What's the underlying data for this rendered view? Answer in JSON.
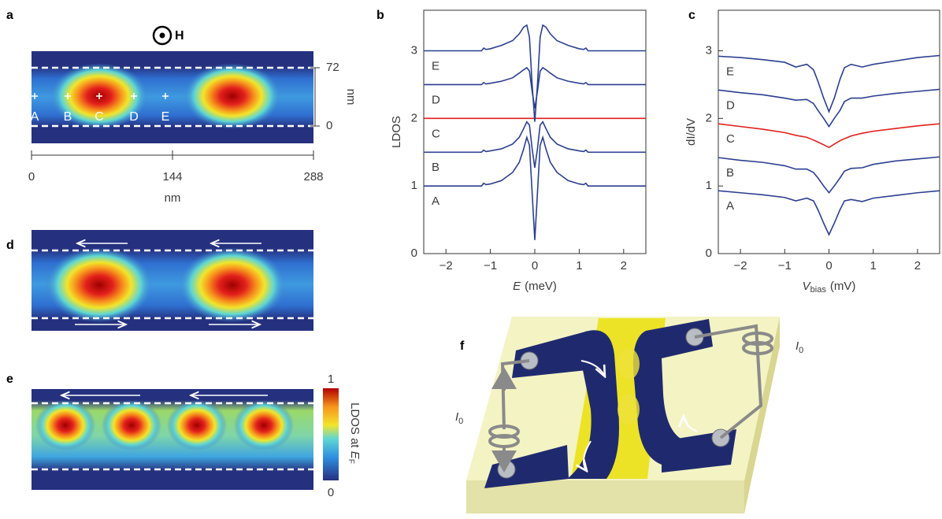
{
  "panel_labels": [
    "a",
    "b",
    "c",
    "d",
    "e",
    "f"
  ],
  "panel_a": {
    "field_label": "H",
    "site_labels": [
      "A",
      "B",
      "C",
      "D",
      "E"
    ],
    "y_scale": {
      "ticks": [
        72,
        0
      ],
      "unit": "nm"
    },
    "x_scale": {
      "ticks": [
        0,
        144,
        288
      ],
      "unit": "nm"
    }
  },
  "panel_e": {
    "colorbar": {
      "ticks": [
        1,
        0
      ],
      "label": [
        "LDOS at ",
        "E",
        "F"
      ]
    }
  },
  "panel_f": {
    "current_labels": [
      [
        "I",
        "0"
      ],
      [
        "I",
        "0"
      ]
    ]
  },
  "chart_data": [
    {
      "type": "line",
      "ylabel": "LDOS",
      "xlabel": {
        "symbol": "E",
        "unit": "(meV)"
      },
      "xlim": [
        -2.5,
        2.5
      ],
      "ylim": [
        0,
        3.6
      ],
      "xticks": [
        {
          "value": -2,
          "label": "−2"
        },
        {
          "value": -1,
          "label": "−1"
        },
        0,
        1,
        2
      ],
      "yticks": [
        0,
        1,
        2,
        3
      ],
      "x": [
        -2.5,
        -2,
        -1.5,
        -1.2,
        -1.15,
        -1.1,
        -1,
        -0.75,
        -0.5,
        -0.35,
        -0.25,
        -0.18,
        -0.12,
        -0.06,
        0,
        0.06,
        0.12,
        0.18,
        0.25,
        0.35,
        0.5,
        0.75,
        1,
        1.1,
        1.15,
        1.2,
        1.5,
        2,
        2.5
      ],
      "series": [
        {
          "name": "A",
          "color": "#2b3f8f",
          "values": [
            1,
            1,
            1,
            1,
            1.04,
            1.02,
            1.03,
            1.08,
            1.2,
            1.35,
            1.55,
            1.72,
            1.6,
            0.9,
            0.2,
            0.9,
            1.6,
            1.72,
            1.55,
            1.35,
            1.2,
            1.08,
            1.03,
            1.02,
            1.04,
            1,
            1,
            1,
            1
          ]
        },
        {
          "name": "B",
          "color": "#2b3f8f",
          "values": [
            1.5,
            1.5,
            1.5,
            1.5,
            1.53,
            1.51,
            1.52,
            1.55,
            1.62,
            1.72,
            1.85,
            1.95,
            1.9,
            1.55,
            1.27,
            1.55,
            1.9,
            1.95,
            1.85,
            1.72,
            1.62,
            1.55,
            1.52,
            1.51,
            1.53,
            1.5,
            1.5,
            1.5,
            1.5
          ]
        },
        {
          "name": "C",
          "color": "#e0201b",
          "values": [
            2,
            2,
            2,
            2,
            2,
            2,
            2,
            2,
            2,
            2,
            2,
            2,
            2,
            2,
            2,
            2,
            2,
            2,
            2,
            2,
            2,
            2,
            2,
            2,
            2,
            2,
            2,
            2,
            2
          ]
        },
        {
          "name": "D",
          "color": "#2b3f8f",
          "values": [
            2.5,
            2.5,
            2.5,
            2.5,
            2.53,
            2.51,
            2.52,
            2.55,
            2.6,
            2.67,
            2.72,
            2.75,
            2.7,
            2.4,
            2.15,
            2.4,
            2.7,
            2.75,
            2.72,
            2.67,
            2.6,
            2.55,
            2.52,
            2.51,
            2.53,
            2.5,
            2.5,
            2.5,
            2.5
          ]
        },
        {
          "name": "E",
          "color": "#2b3f8f",
          "values": [
            3,
            3,
            3,
            3,
            3.04,
            3.02,
            3.03,
            3.08,
            3.15,
            3.25,
            3.35,
            3.38,
            3.2,
            2.5,
            1.95,
            2.5,
            3.2,
            3.38,
            3.35,
            3.25,
            3.15,
            3.08,
            3.03,
            3.02,
            3.04,
            3,
            3,
            3,
            3
          ]
        }
      ]
    },
    {
      "type": "line",
      "ylabel": "dI/dV",
      "xlabel": {
        "symbol": "V",
        "subscript": "bias",
        "unit": "(mV)"
      },
      "xlim": [
        -2.5,
        2.5
      ],
      "ylim": [
        0,
        3.6
      ],
      "xticks": [
        {
          "value": -2,
          "label": "−2"
        },
        {
          "value": -1,
          "label": "−1"
        },
        0,
        1,
        2
      ],
      "yticks": [
        0,
        1,
        2,
        3
      ],
      "x": [
        -2.5,
        -2,
        -1.5,
        -1,
        -0.75,
        -0.5,
        -0.35,
        -0.25,
        -0.12,
        0,
        0.12,
        0.25,
        0.35,
        0.5,
        0.75,
        1,
        1.5,
        2,
        2.5
      ],
      "series": [
        {
          "name": "A",
          "color": "#2b3f8f",
          "values": [
            0.93,
            0.9,
            0.87,
            0.83,
            0.78,
            0.82,
            0.78,
            0.65,
            0.45,
            0.28,
            0.45,
            0.65,
            0.78,
            0.8,
            0.77,
            0.82,
            0.86,
            0.9,
            0.93
          ]
        },
        {
          "name": "B",
          "color": "#2b3f8f",
          "values": [
            1.42,
            1.38,
            1.35,
            1.3,
            1.25,
            1.25,
            1.2,
            1.12,
            1,
            0.9,
            1,
            1.12,
            1.22,
            1.26,
            1.27,
            1.32,
            1.37,
            1.4,
            1.43
          ]
        },
        {
          "name": "C",
          "color": "#e0201b",
          "values": [
            1.92,
            1.88,
            1.84,
            1.79,
            1.75,
            1.72,
            1.68,
            1.65,
            1.61,
            1.57,
            1.62,
            1.67,
            1.7,
            1.74,
            1.78,
            1.81,
            1.85,
            1.89,
            1.92
          ]
        },
        {
          "name": "D",
          "color": "#2b3f8f",
          "values": [
            2.42,
            2.38,
            2.35,
            2.3,
            2.27,
            2.28,
            2.22,
            2.12,
            2,
            1.88,
            2,
            2.12,
            2.25,
            2.3,
            2.3,
            2.33,
            2.37,
            2.4,
            2.43
          ]
        },
        {
          "name": "E",
          "color": "#2b3f8f",
          "values": [
            2.92,
            2.9,
            2.87,
            2.83,
            2.76,
            2.8,
            2.72,
            2.55,
            2.3,
            2.1,
            2.3,
            2.58,
            2.75,
            2.8,
            2.76,
            2.8,
            2.85,
            2.9,
            2.93
          ]
        }
      ]
    }
  ]
}
